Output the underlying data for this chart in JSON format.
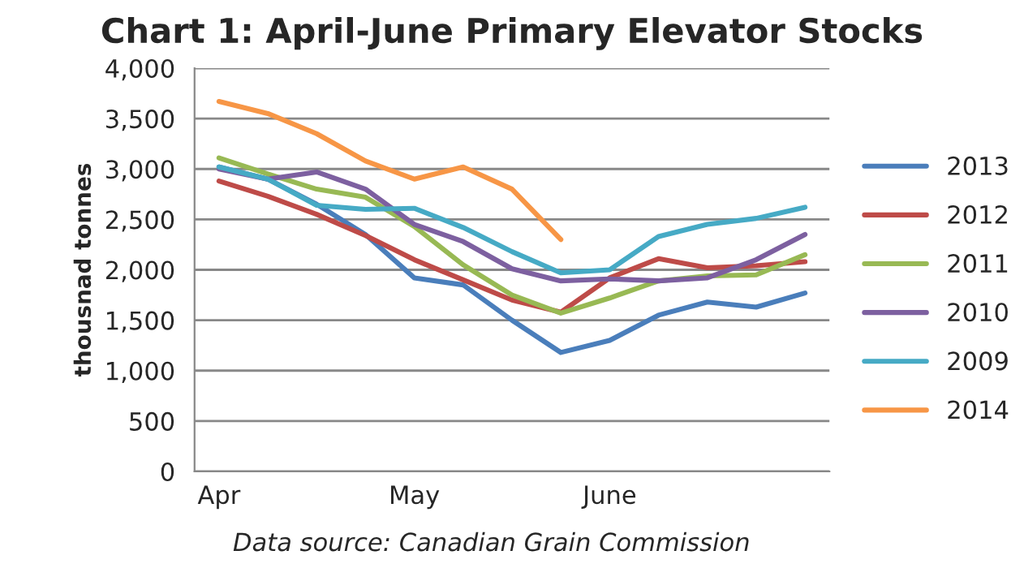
{
  "chart_data": {
    "type": "line",
    "title": "Chart 1: April-June Primary Elevator Stocks",
    "ylabel": "thousnad tonnes",
    "categories": [
      "Apr",
      null,
      null,
      null,
      "May",
      null,
      null,
      null,
      "June",
      null,
      null,
      null,
      null
    ],
    "series": [
      {
        "name": "2013",
        "color": "#4a7ebb",
        "values": [
          3020,
          2900,
          2650,
          2350,
          1920,
          1850,
          1500,
          1180,
          1300,
          1550,
          1680,
          1630,
          1770
        ]
      },
      {
        "name": "2012",
        "color": "#be4b48",
        "values": [
          2880,
          2730,
          2550,
          2340,
          2100,
          1900,
          1700,
          1580,
          1920,
          2110,
          2020,
          2040,
          2080
        ]
      },
      {
        "name": "2011",
        "color": "#98b954",
        "values": [
          3110,
          2950,
          2800,
          2720,
          2430,
          2050,
          1750,
          1570,
          1720,
          1890,
          1940,
          1950,
          2150
        ]
      },
      {
        "name": "2010",
        "color": "#7d60a0",
        "values": [
          3000,
          2900,
          2970,
          2800,
          2450,
          2280,
          2010,
          1890,
          1910,
          1890,
          1920,
          2100,
          2350
        ]
      },
      {
        "name": "2009",
        "color": "#46aac5",
        "values": [
          3020,
          2900,
          2640,
          2600,
          2610,
          2420,
          2180,
          1970,
          2000,
          2330,
          2450,
          2510,
          2620
        ]
      },
      {
        "name": "2014",
        "color": "#f79646",
        "values": [
          3670,
          3550,
          3350,
          3080,
          2900,
          3020,
          2800,
          2300,
          null,
          null,
          null,
          null,
          null
        ]
      }
    ],
    "ylim": [
      0,
      4000
    ],
    "yticks": [
      0,
      500,
      {
        "value": 1000,
        "label": "1,000"
      },
      {
        "value": 1500,
        "label": "1,500"
      },
      {
        "value": 2000,
        "label": "2,000"
      },
      {
        "value": 2500,
        "label": "2,500"
      },
      {
        "value": 3000,
        "label": "3,000"
      },
      {
        "value": 3500,
        "label": "3,500"
      },
      {
        "value": 4000,
        "label": "4,000"
      }
    ],
    "grid": "y",
    "legend": "right",
    "marker": "none",
    "line_style": "solid",
    "annotations": [
      "Data source: Canadian Grain Commission"
    ]
  }
}
